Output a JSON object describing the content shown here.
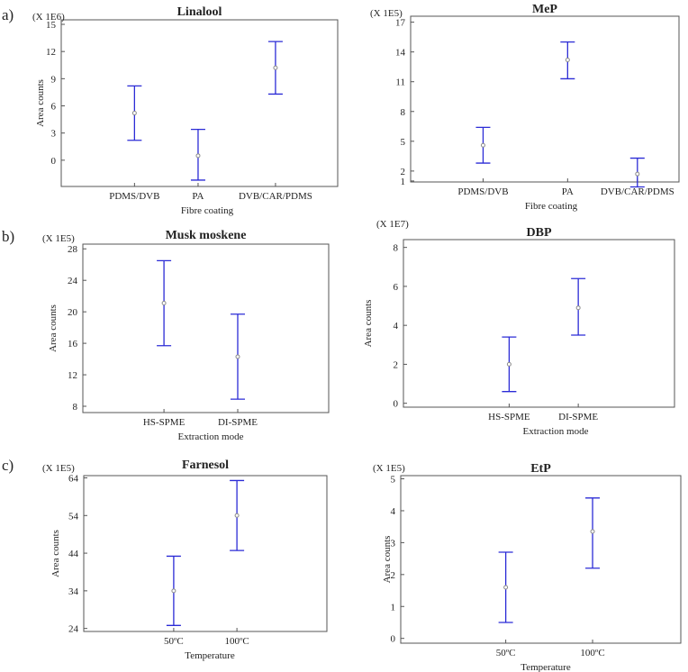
{
  "panel_labels": [
    "a)",
    "b)",
    "c)"
  ],
  "colors": {
    "error_bar": "#2b2bd6",
    "mean_marker": "#8a8a8a",
    "axis": "#555555"
  },
  "chart_data": [
    {
      "id": "linalool",
      "panel": "a)",
      "type": "interval",
      "title": "Linalool",
      "scale_label": "(X 1E6)",
      "xlabel": "Fibre coating",
      "ylabel": "Area counts",
      "categories": [
        "PDMS/DVB",
        "PA",
        "DVB/CAR/PDMS"
      ],
      "mean": [
        5.2,
        0.5,
        10.2
      ],
      "lower": [
        2.2,
        -2.2,
        7.3
      ],
      "upper": [
        8.2,
        3.4,
        13.1
      ],
      "yticks": [
        0,
        3,
        6,
        9,
        12,
        15
      ],
      "ylim": [
        -2.9,
        15.5
      ]
    },
    {
      "id": "mep",
      "panel": "a)",
      "type": "interval",
      "title": "MeP",
      "scale_label": "(X 1E5)",
      "xlabel": "Fibre coating",
      "ylabel": "",
      "categories": [
        "PDMS/DVB",
        "PA",
        "DVB/CAR/PDMS"
      ],
      "mean": [
        4.6,
        13.2,
        1.7
      ],
      "lower": [
        2.8,
        11.3,
        0.4
      ],
      "upper": [
        6.4,
        15.0,
        3.3
      ],
      "yticks": [
        1,
        2,
        5,
        8,
        11,
        14,
        17
      ],
      "ylim": [
        0.9,
        17.6
      ]
    },
    {
      "id": "musk",
      "panel": "b)",
      "type": "interval",
      "title": "Musk moskene",
      "scale_label": "(X 1E5)",
      "xlabel": "Extraction mode",
      "ylabel": "Area counts",
      "categories": [
        "HS-SPME",
        "DI-SPME"
      ],
      "mean": [
        21.1,
        14.3
      ],
      "lower": [
        15.7,
        8.9
      ],
      "upper": [
        26.5,
        19.7
      ],
      "yticks": [
        8,
        12,
        16,
        20,
        24,
        28
      ],
      "ylim": [
        7.2,
        28.6
      ]
    },
    {
      "id": "dbp",
      "panel": "b)",
      "type": "interval",
      "title": "DBP",
      "scale_label": "(X 1E7)",
      "xlabel": "Extraction mode",
      "ylabel": "Area counts",
      "categories": [
        "HS-SPME",
        "DI-SPME"
      ],
      "mean": [
        2.0,
        4.9
      ],
      "lower": [
        0.6,
        3.5
      ],
      "upper": [
        3.4,
        6.4
      ],
      "yticks": [
        0,
        2,
        4,
        6,
        8
      ],
      "ylim": [
        -0.2,
        8.4
      ]
    },
    {
      "id": "farnesol",
      "panel": "c)",
      "type": "interval",
      "title": "Farnesol",
      "scale_label": "(X 1E5)",
      "xlabel": "Temperature",
      "ylabel": "Area counts",
      "categories": [
        "50ºC",
        "100ºC"
      ],
      "mean": [
        34.0,
        54.0
      ],
      "lower": [
        24.8,
        44.7
      ],
      "upper": [
        43.2,
        63.3
      ],
      "yticks": [
        24,
        34,
        44,
        54,
        64
      ],
      "ylim": [
        23.2,
        64.6
      ]
    },
    {
      "id": "etp",
      "panel": "c)",
      "type": "interval",
      "title": "EtP",
      "scale_label": "(X 1E5)",
      "xlabel": "Temperature",
      "ylabel": "Area counts",
      "categories": [
        "50ºC",
        "100ºC"
      ],
      "mean": [
        1.6,
        3.35
      ],
      "lower": [
        0.5,
        2.2
      ],
      "upper": [
        2.7,
        4.4
      ],
      "yticks": [
        0,
        1,
        2,
        3,
        4,
        5
      ],
      "ylim": [
        -0.15,
        5.1
      ]
    }
  ]
}
